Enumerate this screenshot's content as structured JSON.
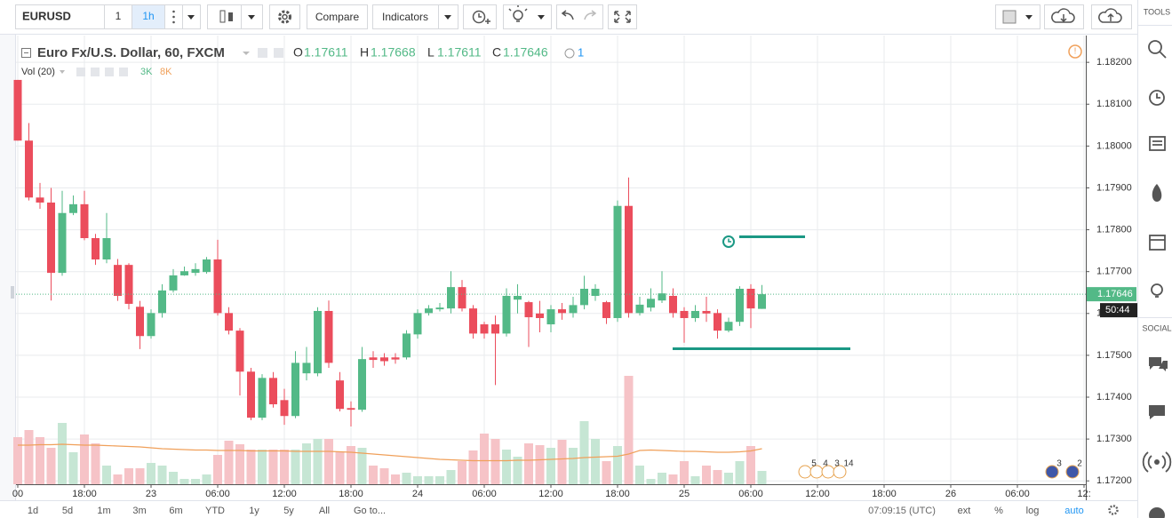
{
  "toolbar": {
    "symbol": "EURUSD",
    "interval_input": "1",
    "interval": "1h",
    "compare": "Compare",
    "indicators": "Indicators"
  },
  "sidebar": {
    "tools": "TOOLS",
    "social": "SOCIAL"
  },
  "alerts_count": "1",
  "countdown": "50:44",
  "events": {
    "upcoming": [
      "5",
      "4",
      "3",
      "14"
    ],
    "later": [
      "3",
      "2"
    ]
  },
  "bottom_bar": {
    "ranges": [
      "1d",
      "5d",
      "1m",
      "3m",
      "6m",
      "YTD",
      "1y",
      "5y",
      "All"
    ],
    "goto": "Go to...",
    "time": "07:09:15 (UTC)",
    "options": [
      "ext",
      "%",
      "log",
      "auto"
    ]
  },
  "chart_data": {
    "type": "candlestick",
    "title": "Euro Fx/U.S. Dollar, 60, FXCM",
    "ohlc_labels": [
      "O",
      "H",
      "L",
      "C"
    ],
    "volume_study": "Vol (20)",
    "volume_legend": [
      "3K",
      "8K"
    ],
    "categories": [
      "00",
      null,
      null,
      null,
      null,
      null,
      "18:00",
      null,
      null,
      null,
      null,
      null,
      "23",
      null,
      null,
      null,
      null,
      null,
      "06:00",
      null,
      null,
      null,
      null,
      null,
      "12:00",
      null,
      null,
      null,
      null,
      null,
      "18:00",
      null,
      null,
      null,
      null,
      null,
      "24",
      null,
      null,
      null,
      null,
      null,
      "06:00",
      null,
      null,
      null,
      null,
      null,
      "12:00",
      null,
      null,
      null,
      null,
      null,
      "18:00",
      null,
      null,
      null,
      null,
      null,
      "25",
      null,
      null,
      null,
      null,
      null,
      "06:00",
      null,
      null,
      null,
      null,
      null,
      "12:00",
      null,
      null,
      null,
      null,
      null,
      "18:00",
      null,
      null,
      null,
      null,
      null,
      "26",
      null,
      null,
      null,
      null,
      null,
      "06:00",
      null,
      null,
      null,
      null,
      null,
      "12:"
    ],
    "open": [
      1.18158,
      1.18013,
      1.17877,
      1.17865,
      1.17697,
      1.1784,
      1.17861,
      1.1778,
      1.17729,
      1.17716,
      1.17716,
      1.17616,
      1.17546,
      1.17601,
      1.17655,
      1.17691,
      1.17697,
      1.17699,
      1.17729,
      1.17601,
      1.17559,
      1.17461,
      1.17351,
      1.17446,
      1.17393,
      1.17355,
      1.17457,
      1.17457,
      1.17606,
      1.1744,
      1.17374,
      1.1737,
      1.17495,
      1.17495,
      1.17495,
      1.17495,
      1.1755,
      1.17601,
      1.1761,
      1.17612,
      1.17663,
      1.17612,
      1.17574,
      1.17574,
      1.17552,
      1.17633,
      1.17627,
      1.176,
      1.17574,
      1.1761,
      1.17601,
      1.1762,
      1.17642,
      1.17627,
      1.17589,
      1.17857,
      1.17601,
      1.17614,
      1.17631,
      1.17642,
      1.17606,
      1.17589,
      1.17606,
      1.17601,
      1.17559,
      1.1758,
      1.17659,
      1.17611,
      null,
      null,
      null,
      null,
      null,
      null,
      null,
      null,
      null,
      null,
      null,
      null,
      null,
      null,
      null,
      null,
      null,
      null,
      null,
      null,
      null,
      null,
      null,
      null,
      null,
      null,
      null,
      null,
      null
    ],
    "high": [
      1.18158,
      1.18055,
      1.17912,
      1.179,
      1.17893,
      1.17882,
      1.17893,
      1.1779,
      1.1784,
      1.1773,
      1.1772,
      1.1763,
      1.1761,
      1.1767,
      1.17706,
      1.17712,
      1.1772,
      1.17735,
      1.17776,
      1.17615,
      1.17565,
      1.1747,
      1.17455,
      1.1746,
      1.1742,
      1.1751,
      1.1752,
      1.17615,
      1.17631,
      1.1746,
      1.1739,
      1.1752,
      1.1751,
      1.17505,
      1.17505,
      1.1756,
      1.1761,
      1.1762,
      1.17625,
      1.17701,
      1.1768,
      1.1762,
      1.1758,
      1.17595,
      1.1766,
      1.1767,
      1.1763,
      1.1763,
      1.1762,
      1.17625,
      1.1764,
      1.1769,
      1.1767,
      1.1763,
      1.1787,
      1.17925,
      1.1764,
      1.1766,
      1.17701,
      1.1766,
      1.17615,
      1.1762,
      1.1764,
      1.1761,
      1.1759,
      1.17665,
      1.1767,
      1.17668,
      null,
      null,
      null,
      null,
      null,
      null,
      null,
      null,
      null,
      null,
      null,
      null,
      null,
      null,
      null,
      null,
      null,
      null,
      null,
      null,
      null,
      null,
      null,
      null,
      null,
      null,
      null,
      null,
      null
    ],
    "low": [
      1.18013,
      1.1787,
      1.1785,
      1.17631,
      1.1769,
      1.17835,
      1.17775,
      1.17716,
      1.1772,
      1.1763,
      1.1761,
      1.17515,
      1.1754,
      1.1759,
      1.1765,
      1.1769,
      1.1769,
      1.17695,
      1.17595,
      1.1755,
      1.17404,
      1.17345,
      1.17345,
      1.17375,
      1.17334,
      1.1735,
      1.1744,
      1.1745,
      1.1747,
      1.17366,
      1.1733,
      1.17365,
      1.1747,
      1.17475,
      1.1748,
      1.1749,
      1.1754,
      1.17595,
      1.17605,
      1.176,
      1.17605,
      1.1754,
      1.1754,
      1.17429,
      1.17545,
      1.176,
      1.1752,
      1.17555,
      1.17555,
      1.17585,
      1.1759,
      1.1761,
      1.1763,
      1.17575,
      1.1758,
      1.1759,
      1.17595,
      1.17605,
      1.17625,
      1.1759,
      1.1753,
      1.1758,
      1.1758,
      1.1754,
      1.17555,
      1.1757,
      1.17565,
      1.17611,
      null,
      null,
      null,
      null,
      null,
      null,
      null,
      null,
      null,
      null,
      null,
      null,
      null,
      null,
      null,
      null,
      null,
      null,
      null,
      null,
      null,
      null,
      null,
      null,
      null,
      null,
      null,
      null,
      null
    ],
    "close": [
      1.18013,
      1.17877,
      1.17865,
      1.17697,
      1.1784,
      1.17861,
      1.1778,
      1.17729,
      1.1778,
      1.17642,
      1.17623,
      1.17546,
      1.17601,
      1.17655,
      1.17691,
      1.17701,
      1.17706,
      1.17729,
      1.17601,
      1.17559,
      1.17461,
      1.17351,
      1.17446,
      1.17383,
      1.17355,
      1.17482,
      1.17482,
      1.17606,
      1.17482,
      1.17372,
      1.1737,
      1.17491,
      1.17489,
      1.17486,
      1.1749,
      1.17552,
      1.17601,
      1.17612,
      1.17614,
      1.17663,
      1.17612,
      1.17552,
      1.17552,
      1.17552,
      1.17642,
      1.17642,
      1.17591,
      1.17589,
      1.1761,
      1.17601,
      1.1762,
      1.17659,
      1.17659,
      1.17589,
      1.17857,
      1.17601,
      1.17621,
      1.17635,
      1.17648,
      1.17601,
      1.17589,
      1.17606,
      1.176,
      1.17559,
      1.1758,
      1.17659,
      1.17612,
      1.17646,
      null,
      null,
      null,
      null,
      null,
      null,
      null,
      null,
      null,
      null,
      null,
      null,
      null,
      null,
      null,
      null,
      null,
      null,
      null,
      null,
      null,
      null,
      null,
      null,
      null,
      null,
      null,
      null,
      null
    ],
    "volume": [
      10600,
      12200,
      10600,
      8200,
      13800,
      7200,
      11200,
      9200,
      4200,
      2200,
      3600,
      3600,
      4800,
      4200,
      2800,
      1200,
      1200,
      2200,
      6600,
      9800,
      9000,
      7800,
      7800,
      7800,
      7800,
      7800,
      9200,
      10200,
      10200,
      7200,
      8600,
      8200,
      4200,
      3600,
      2200,
      2600,
      1800,
      1800,
      1800,
      3200,
      5200,
      7600,
      11400,
      10200,
      7800,
      6200,
      9200,
      8800,
      8200,
      10000,
      8200,
      14200,
      10200,
      5200,
      8600,
      24400,
      4200,
      1200,
      2600,
      2200,
      5200,
      1800,
      4200,
      3200,
      2600,
      5200,
      8600,
      3000,
      null,
      null,
      null,
      null,
      null,
      null,
      null,
      null,
      null,
      null,
      null,
      null,
      null,
      null,
      null,
      null,
      null,
      null,
      null,
      null,
      null,
      null,
      null,
      null,
      null,
      null,
      null,
      null,
      null
    ],
    "volume_ma": [
      8800,
      8800,
      8900,
      8900,
      9000,
      8900,
      8800,
      8800,
      8700,
      8600,
      8500,
      8400,
      8200,
      8000,
      7900,
      7800,
      7700,
      7700,
      7600,
      7600,
      7600,
      7500,
      7500,
      7500,
      7500,
      7400,
      7400,
      7400,
      7400,
      7300,
      7200,
      7000,
      6800,
      6600,
      6400,
      6200,
      6000,
      5800,
      5600,
      5500,
      5400,
      5300,
      5300,
      5300,
      5300,
      5400,
      5400,
      5500,
      5600,
      5700,
      5800,
      6000,
      6100,
      6200,
      6300,
      6800,
      7600,
      7700,
      7600,
      7500,
      7400,
      7400,
      7300,
      7200,
      7200,
      7300,
      7500,
      8000,
      null,
      null,
      null,
      null,
      null,
      null,
      null,
      null,
      null,
      null,
      null,
      null,
      null,
      null,
      null,
      null,
      null,
      null,
      null,
      null,
      null,
      null,
      null,
      null,
      null,
      null,
      null,
      null,
      null
    ],
    "colors": {
      "up": "#53b987",
      "down": "#eb4d5c",
      "volume_up": "#c6e6d4",
      "volume_down": "#f6c3c7",
      "volume_ma": "#f0a05a",
      "grid": "#e9ebee"
    },
    "ylim": [
      1.17192,
      1.18264
    ],
    "yticks": [
      {
        "value": 1.182,
        "label": "1.18200"
      },
      {
        "value": 1.181,
        "label": "1.18100"
      },
      {
        "value": 1.18,
        "label": "1.18000"
      },
      {
        "value": 1.179,
        "label": "1.17900"
      },
      {
        "value": 1.178,
        "label": "1.17800"
      },
      {
        "value": 1.177,
        "label": "1.17700"
      },
      {
        "value": 1.176,
        "label": "1.17600"
      },
      {
        "value": 1.175,
        "label": "1.17500"
      },
      {
        "value": 1.174,
        "label": "1.17400"
      },
      {
        "value": 1.173,
        "label": "1.17300"
      },
      {
        "value": 1.172,
        "label": "1.17200"
      }
    ],
    "y2lim": [
      0,
      101000
    ],
    "grid": true
  }
}
